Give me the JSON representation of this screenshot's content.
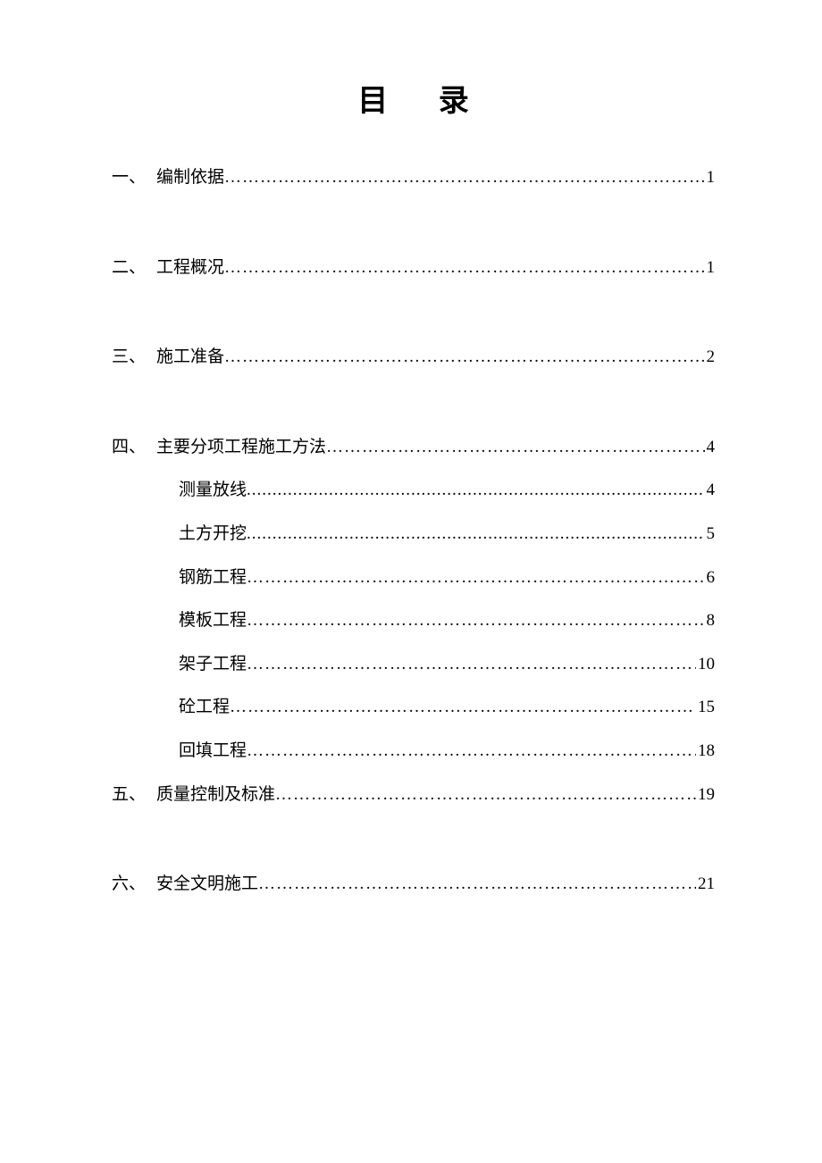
{
  "title": "目  录",
  "colors": {
    "background": "#ffffff",
    "text": "#000000"
  },
  "typography": {
    "title_fontsize": 34,
    "title_weight": "bold",
    "title_letter_spacing": 24,
    "entry_fontsize": 19,
    "font_family": "SimSun"
  },
  "entries": [
    {
      "type": "main",
      "num": "一、",
      "label": "编制依据",
      "page": "1",
      "leader": "…"
    },
    {
      "type": "main",
      "num": "二、",
      "label": "工程概况",
      "page": "1",
      "leader": "…"
    },
    {
      "type": "main",
      "num": "三、",
      "label": "施工准备",
      "page": "2",
      "leader": "…"
    },
    {
      "type": "main",
      "num": "四、",
      "label": "主要分项工程施工方法",
      "page": "4",
      "leader": "…"
    },
    {
      "type": "sub",
      "num": "",
      "label": "测量放线",
      "page": "4",
      "leader": "."
    },
    {
      "type": "sub",
      "num": "",
      "label": "土方开挖",
      "page": "5",
      "leader": "."
    },
    {
      "type": "sub",
      "num": "",
      "label": "钢筋工程",
      "page": "6",
      "leader": "…"
    },
    {
      "type": "sub",
      "num": "",
      "label": "模板工程",
      "page": "8",
      "leader": "…"
    },
    {
      "type": "sub",
      "num": "",
      "label": "架子工程",
      "page": "10",
      "leader": "…"
    },
    {
      "type": "sub",
      "num": "",
      "label": "砼工程",
      "page": "15",
      "leader": "…"
    },
    {
      "type": "sub",
      "num": "",
      "label": "回填工程",
      "page": "18",
      "leader": "…"
    },
    {
      "type": "main",
      "num": "五、",
      "label": "质量控制及标准",
      "page": "19",
      "leader": "…"
    },
    {
      "type": "main",
      "num": "六、",
      "label": " 安全文明施工",
      "page": "21",
      "leader": "…"
    }
  ]
}
